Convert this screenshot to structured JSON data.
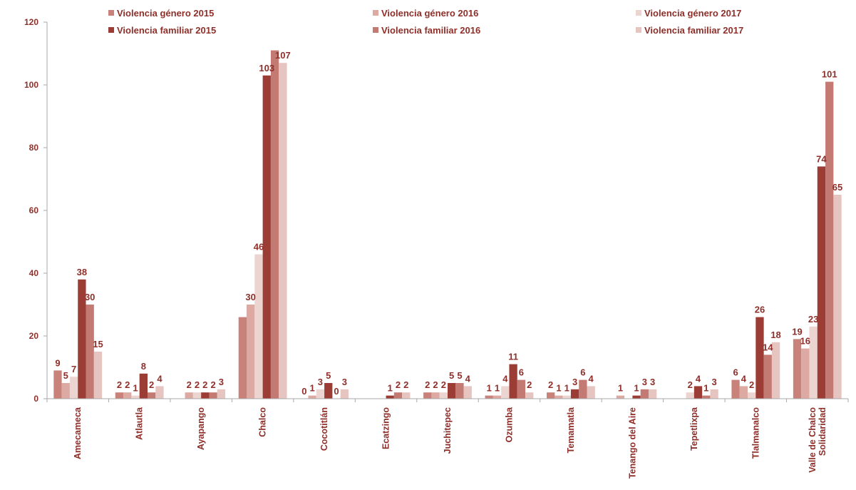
{
  "chart_data": {
    "type": "bar",
    "ylim": [
      0,
      120
    ],
    "yticks": [
      0,
      20,
      40,
      60,
      80,
      100,
      120
    ],
    "grid": false,
    "legend_position": "top",
    "categories": [
      "Amecameca",
      "Atlautla",
      "Ayapango",
      "Chalco",
      "Cocotitlán",
      "Ecatzingo",
      "Juchitepec",
      "Ozumba",
      "Temamatla",
      "Tenango del Aire",
      "Tepetlixpa",
      "Tlalmanalco",
      "Valle de Chalco Solidaridad"
    ],
    "series": [
      {
        "name": "Violencia género 2015",
        "color": "#c98279",
        "values": [
          9,
          2,
          0,
          26,
          0,
          0,
          2,
          1,
          2,
          0,
          0,
          6,
          19
        ],
        "labels": [
          "9",
          "2",
          "",
          "",
          "0",
          "",
          "2",
          "1",
          "2",
          "",
          "",
          "6",
          "19"
        ]
      },
      {
        "name": "Violencia género 2016",
        "color": "#dca9a3",
        "values": [
          5,
          2,
          2,
          30,
          1,
          0,
          2,
          1,
          1,
          1,
          0,
          4,
          16
        ],
        "labels": [
          "5",
          "2",
          "2",
          "30",
          "1",
          "",
          "2",
          "1",
          "1",
          "1",
          "",
          "4",
          "16"
        ]
      },
      {
        "name": "Violencia género 2017",
        "color": "#ecd4d0",
        "values": [
          7,
          1,
          2,
          46,
          3,
          0,
          2,
          4,
          1,
          0,
          2,
          2,
          23
        ],
        "labels": [
          "7",
          "1",
          "2",
          "46",
          "3",
          "",
          "2",
          "4",
          "1",
          "",
          "2",
          "2",
          "23"
        ]
      },
      {
        "name": "Violencia familiar 2015",
        "color": "#9c3d35",
        "values": [
          38,
          8,
          2,
          103,
          5,
          1,
          5,
          11,
          3,
          1,
          4,
          26,
          74
        ],
        "labels": [
          "38",
          "8",
          "2",
          "103",
          "5",
          "1",
          "5",
          "11",
          "3",
          "1",
          "4",
          "26",
          "74"
        ]
      },
      {
        "name": "Violencia familiar 2016",
        "color": "#c27a72",
        "values": [
          30,
          2,
          2,
          111,
          0,
          2,
          5,
          6,
          6,
          3,
          1,
          14,
          101
        ],
        "labels": [
          "30",
          "2",
          "2",
          "",
          "0",
          "2",
          "5",
          "6",
          "6",
          "3",
          "1",
          "14",
          "101"
        ]
      },
      {
        "name": "Violencia familiar 2017",
        "color": "#e6c4c0",
        "values": [
          15,
          4,
          3,
          107,
          3,
          2,
          4,
          2,
          4,
          3,
          3,
          18,
          65
        ],
        "labels": [
          "15",
          "4",
          "3",
          "107",
          "3",
          "2",
          "4",
          "2",
          "4",
          "3",
          "3",
          "18",
          "65"
        ]
      }
    ]
  }
}
